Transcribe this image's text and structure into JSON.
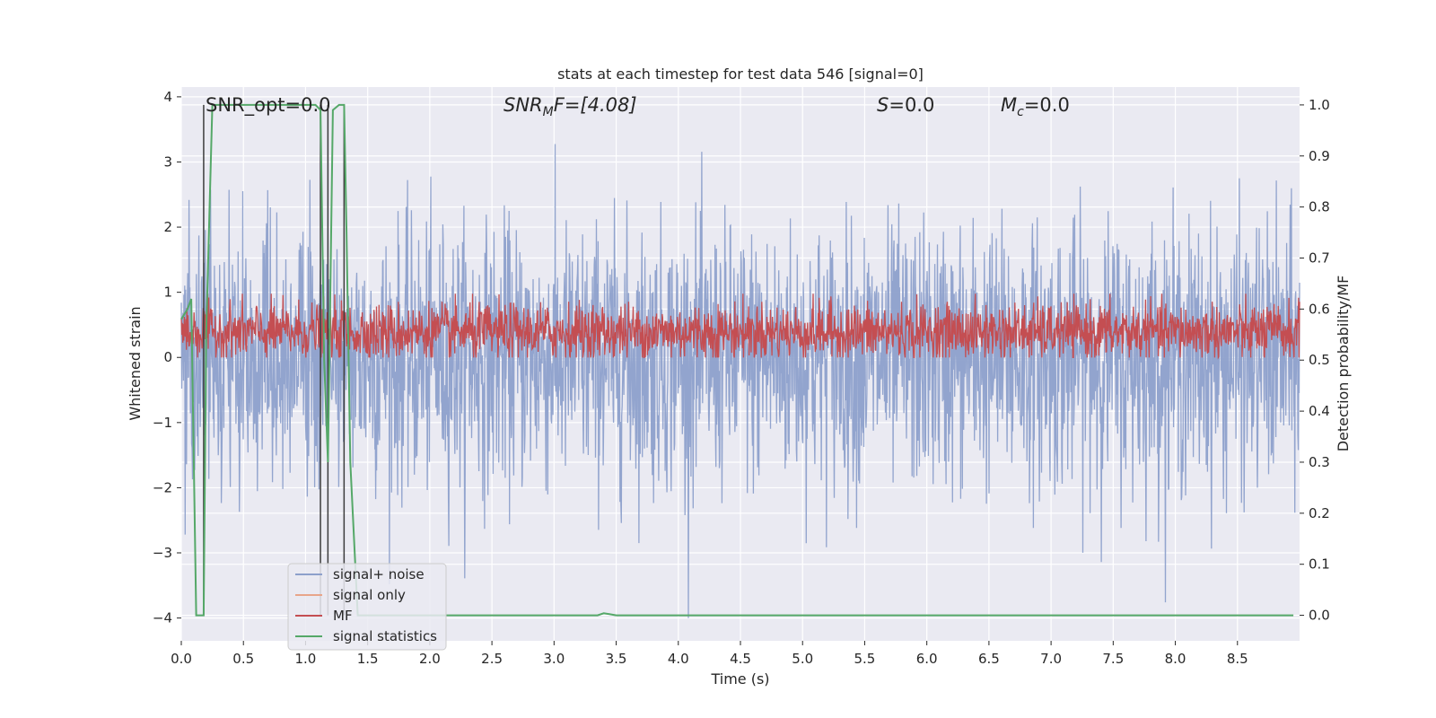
{
  "chart_data": {
    "type": "line",
    "title": "stats at each timestep for test data 546 [signal=0]",
    "xlabel": "Time (s)",
    "ylabel_left": "Whitened strain",
    "ylabel_right": "Detection probability/MF",
    "xlim": [
      0.0,
      9.0
    ],
    "ylim_left": [
      -4.35,
      4.15
    ],
    "ylim_right": [
      -0.05,
      1.035
    ],
    "x_ticks": [
      "0.0",
      "0.5",
      "1.0",
      "1.5",
      "2.0",
      "2.5",
      "3.0",
      "3.5",
      "4.0",
      "4.5",
      "5.0",
      "5.5",
      "6.0",
      "6.5",
      "7.0",
      "7.5",
      "8.0",
      "8.5"
    ],
    "y_ticks_left": [
      "4",
      "3",
      "2",
      "1",
      "0",
      "−1",
      "−2",
      "−3",
      "−4"
    ],
    "y_ticks_right": [
      "1.0",
      "0.9",
      "0.8",
      "0.7",
      "0.6",
      "0.5",
      "0.4",
      "0.3",
      "0.2",
      "0.1",
      "0.0"
    ],
    "grid": true,
    "legend_position": "lower-left",
    "annotations": {
      "snr_opt": "SNR_opt=0.0",
      "snr_mf_main": "SNR",
      "snr_mf_sub": "M",
      "snr_mf_rest": "F=[4.08]",
      "s_main": "S",
      "s_rest": "=0.0",
      "mc_main": "M",
      "mc_sub": "c",
      "mc_rest": "=0.0"
    },
    "vertical_markers_s": [
      0.18,
      1.12,
      1.18,
      1.31
    ],
    "series": [
      {
        "name": "signal+ noise",
        "axis": "left",
        "color": "#8da0cb",
        "description_values": {
          "baseline_std": 1.0,
          "max": 3.8,
          "min": -4.0,
          "dense": true
        }
      },
      {
        "name": "signal only",
        "axis": "left",
        "color": "#e8a58a",
        "x": [
          0.0,
          9.0
        ],
        "y": [
          0.0,
          0.0
        ]
      },
      {
        "name": "MF",
        "axis": "right",
        "color": "#c44e52",
        "description_values": {
          "band_low": 0.51,
          "band_high": 0.6,
          "peak": 0.63
        }
      },
      {
        "name": "signal statistics",
        "axis": "right",
        "color": "#55a868",
        "x": [
          0.0,
          0.05,
          0.08,
          0.12,
          0.18,
          0.2,
          0.25,
          1.08,
          1.12,
          1.15,
          1.18,
          1.22,
          1.27,
          1.31,
          1.33,
          1.36,
          1.42,
          3.35,
          3.4,
          3.45,
          3.5,
          8.95
        ],
        "y": [
          0.58,
          0.6,
          0.62,
          0.0,
          0.0,
          0.55,
          1.0,
          1.0,
          0.99,
          0.5,
          0.3,
          0.99,
          1.0,
          1.0,
          0.75,
          0.3,
          0.0,
          0.0,
          0.004,
          0.002,
          0.0,
          0.0
        ]
      }
    ]
  }
}
